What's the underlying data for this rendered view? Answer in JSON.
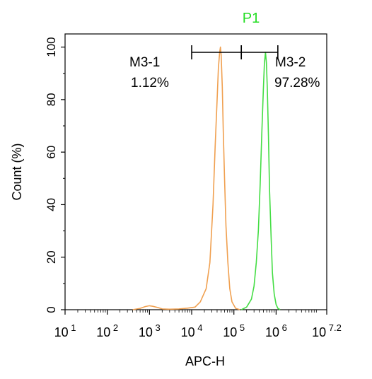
{
  "chart_data": {
    "type": "area",
    "title": "P1",
    "title_color": "#22dd22",
    "xlabel": "APC-H",
    "ylabel": "Count (%)",
    "x_scale": "log10",
    "xlim": [
      10,
      15848932
    ],
    "ylim": [
      0,
      105
    ],
    "x_ticks": [
      {
        "value": 10,
        "base": "10",
        "exp": "1"
      },
      {
        "value": 100,
        "base": "10",
        "exp": "2"
      },
      {
        "value": 1000,
        "base": "10",
        "exp": "3"
      },
      {
        "value": 10000,
        "base": "10",
        "exp": "4"
      },
      {
        "value": 100000,
        "base": "10",
        "exp": "5"
      },
      {
        "value": 1000000,
        "base": "10",
        "exp": "6"
      },
      {
        "value": 15848932,
        "base": "10",
        "exp": "7.2"
      }
    ],
    "y_ticks": [
      0,
      20,
      40,
      60,
      80,
      100
    ],
    "grid": false,
    "series": [
      {
        "color": "#f0a050",
        "x": [
          400,
          600,
          800,
          1000,
          1200,
          1600,
          2000,
          3000,
          5000,
          8000,
          12000,
          16000,
          22000,
          27000,
          32000,
          36000,
          40000,
          43000,
          46000,
          48000,
          50000,
          53000,
          56000,
          60000,
          65000,
          72000,
          80000,
          90000,
          110000,
          140000
        ],
        "y": [
          0,
          0.5,
          1.2,
          1.5,
          1.3,
          0.8,
          0.3,
          0.2,
          0.3,
          0.6,
          1,
          3,
          8,
          18,
          40,
          62,
          80,
          92,
          98,
          100,
          97,
          85,
          68,
          50,
          32,
          18,
          8,
          3,
          0.5,
          0
        ]
      },
      {
        "color": "#44dd44",
        "x": [
          150000,
          200000,
          260000,
          300000,
          340000,
          380000,
          420000,
          460000,
          500000,
          530000,
          560000,
          590000,
          620000,
          660000,
          700000,
          760000,
          820000,
          900000,
          1000000,
          1100000,
          1250000
        ],
        "y": [
          0,
          1,
          4,
          9,
          18,
          30,
          48,
          68,
          84,
          94,
          98,
          94,
          84,
          66,
          46,
          28,
          14,
          6,
          2,
          0.5,
          0
        ]
      }
    ],
    "gates": [
      {
        "name": "M3-1",
        "percent": "1.12%",
        "x_start": 10000,
        "x_end": 150000,
        "y": 98
      },
      {
        "name": "M3-2",
        "percent": "97.28%",
        "x_start": 150000,
        "x_end": 1100000,
        "y": 98
      }
    ]
  }
}
